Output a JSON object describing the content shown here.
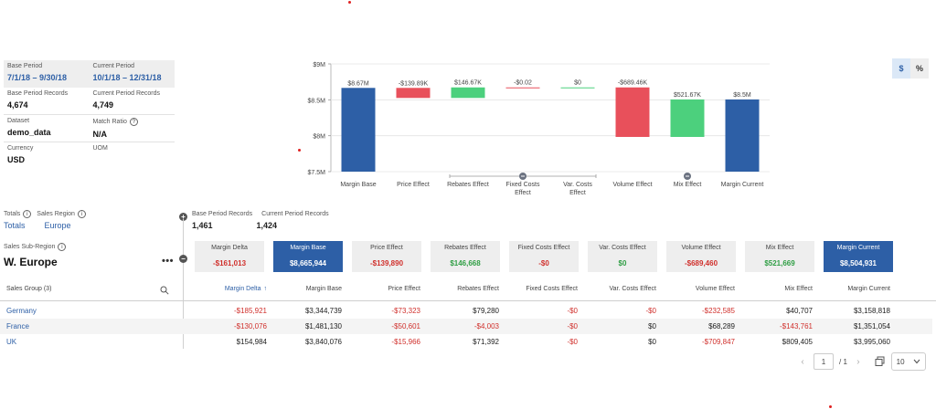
{
  "info": {
    "base_period_label": "Base Period",
    "base_period_value": "7/1/18 – 9/30/18",
    "current_period_label": "Current Period",
    "current_period_value": "10/1/18 – 12/31/18",
    "base_records_label": "Base Period Records",
    "base_records_value": "4,674",
    "current_records_label": "Current Period Records",
    "current_records_value": "4,749",
    "dataset_label": "Dataset",
    "dataset_value": "demo_data",
    "match_ratio_label": "Match Ratio",
    "match_ratio_value": "N/A",
    "currency_label": "Currency",
    "currency_value": "USD",
    "uom_label": "UOM"
  },
  "toggle": {
    "dollar": "$",
    "percent": "%"
  },
  "chart_data": {
    "type": "bar",
    "subtype": "waterfall",
    "categories": [
      "Margin Base",
      "Price Effect",
      "Rebates Effect",
      "Fixed Costs Effect",
      "Var. Costs Effect",
      "Volume Effect",
      "Mix Effect",
      "Margin Current"
    ],
    "bar_labels": [
      "$8.67M",
      "-$139.89K",
      "$146.67K",
      "-$0.02",
      "$0",
      "-$689.46K",
      "$521.67K",
      "$8.5M"
    ],
    "values": [
      8665944,
      -139890,
      146668,
      -0.02,
      0,
      -689460,
      521669,
      8504931
    ],
    "bar_kinds": [
      "total",
      "neg",
      "pos",
      "neg",
      "pos",
      "neg",
      "pos",
      "total"
    ],
    "y_ticks": [
      "$7.5M",
      "$8M",
      "$8.5M",
      "$9M"
    ],
    "ylim": [
      7500000,
      9000000
    ],
    "colors": {
      "total": "#2d5fa6",
      "neg": "#e8505b",
      "pos": "#4cd07d"
    }
  },
  "filters": {
    "totals_label": "Totals",
    "sales_region_label": "Sales Region",
    "totals_value": "Totals",
    "sales_region_value": "Europe"
  },
  "records": {
    "base_label": "Base Period Records",
    "current_label": "Current Period Records",
    "base_value": "1,461",
    "current_value": "1,424"
  },
  "subregion": {
    "label": "Sales Sub-Region",
    "title": "W. Europe",
    "menu": "•••"
  },
  "cards": [
    {
      "title": "Margin Delta",
      "value": "-$161,013",
      "tone": "neg"
    },
    {
      "title": "Margin Base",
      "value": "$8,665,944",
      "tone": "active"
    },
    {
      "title": "Price Effect",
      "value": "-$139,890",
      "tone": "neg"
    },
    {
      "title": "Rebates Effect",
      "value": "$146,668",
      "tone": "pos"
    },
    {
      "title": "Fixed Costs Effect",
      "value": "-$0",
      "tone": "neg"
    },
    {
      "title": "Var. Costs Effect",
      "value": "$0",
      "tone": "pos"
    },
    {
      "title": "Volume Effect",
      "value": "-$689,460",
      "tone": "neg"
    },
    {
      "title": "Mix Effect",
      "value": "$521,669",
      "tone": "pos"
    },
    {
      "title": "Margin Current",
      "value": "$8,504,931",
      "tone": "active"
    }
  ],
  "table": {
    "group_header": "Sales Group (3)",
    "headers": [
      "Margin Delta",
      "Margin Base",
      "Price Effect",
      "Rebates Effect",
      "Fixed Costs Effect",
      "Var. Costs Effect",
      "Volume Effect",
      "Mix Effect",
      "Margin Current"
    ],
    "sort_arrow": "↑",
    "rows": [
      {
        "name": "Germany",
        "cells": [
          "-$185,921",
          "$3,344,739",
          "-$73,323",
          "$79,280",
          "-$0",
          "-$0",
          "-$232,585",
          "$40,707",
          "$3,158,818"
        ],
        "tones": [
          "neg",
          "",
          "neg",
          "",
          "neg",
          "neg",
          "neg",
          "",
          ""
        ]
      },
      {
        "name": "France",
        "cells": [
          "-$130,076",
          "$1,481,130",
          "-$50,601",
          "-$4,003",
          "-$0",
          "$0",
          "$68,289",
          "-$143,761",
          "$1,351,054"
        ],
        "tones": [
          "neg",
          "",
          "neg",
          "neg",
          "neg",
          "",
          "",
          "neg",
          ""
        ]
      },
      {
        "name": "UK",
        "cells": [
          "$154,984",
          "$3,840,076",
          "-$15,966",
          "$71,392",
          "-$0",
          "$0",
          "-$709,847",
          "$809,405",
          "$3,995,060"
        ],
        "tones": [
          "",
          "",
          "neg",
          "",
          "neg",
          "",
          "neg",
          "",
          ""
        ]
      }
    ]
  },
  "pager": {
    "page": "1",
    "of": "/ 1",
    "page_size": "10"
  }
}
